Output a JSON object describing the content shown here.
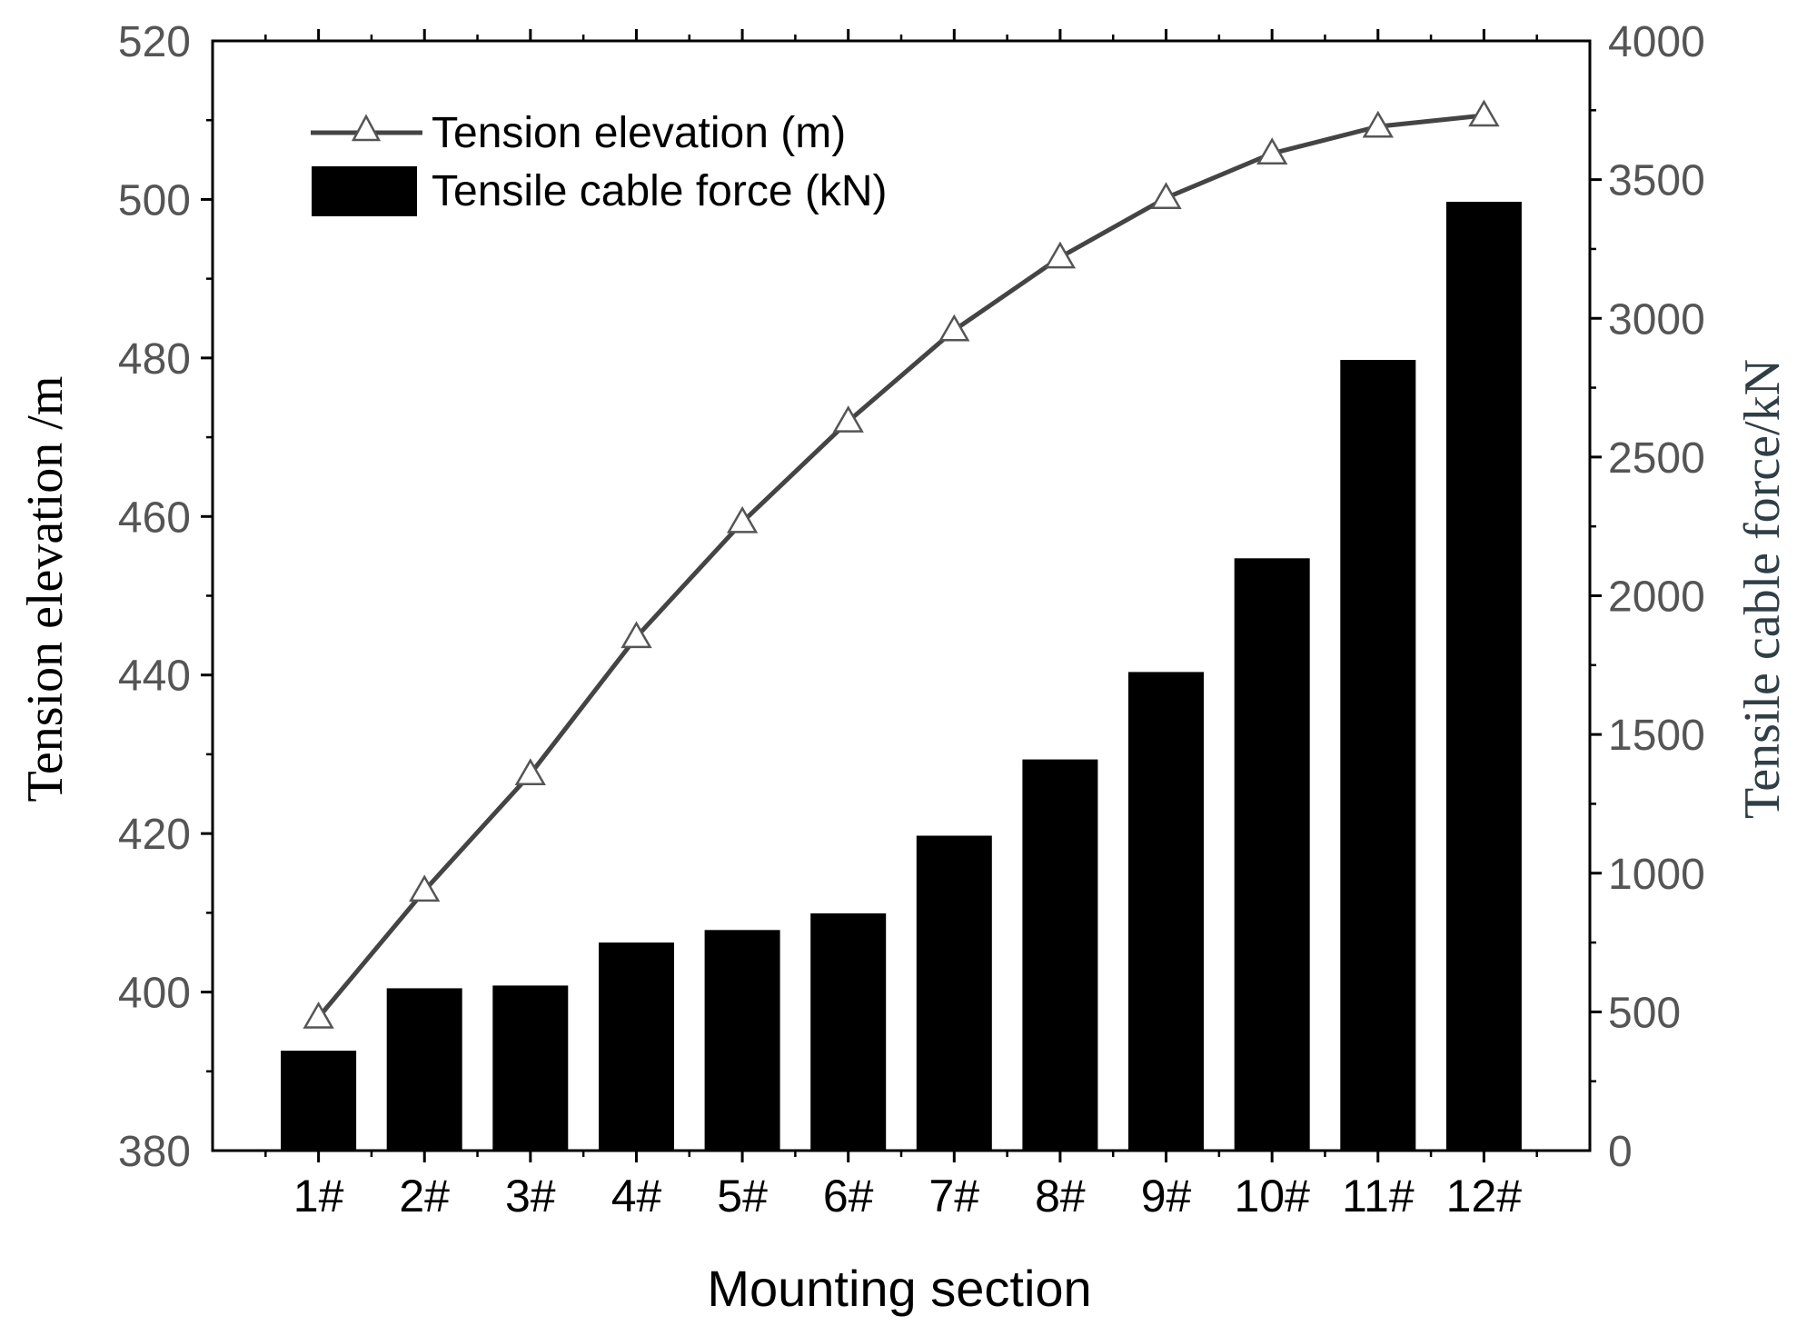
{
  "chart_data": {
    "type": "bar+line",
    "xlabel": "Mounting section",
    "categories": [
      "1#",
      "2#",
      "3#",
      "4#",
      "5#",
      "6#",
      "7#",
      "8#",
      "9#",
      "10#",
      "11#",
      "12#"
    ],
    "left_axis": {
      "label": "Tension elevation /m",
      "ylim": [
        380,
        520
      ],
      "ticks": [
        "380",
        "400",
        "420",
        "440",
        "460",
        "480",
        "500",
        "520"
      ]
    },
    "right_axis": {
      "label": "Tensile cable force/kN",
      "ylim": [
        0,
        4000
      ],
      "ticks": [
        "0",
        "500",
        "1000",
        "1500",
        "2000",
        "2500",
        "3000",
        "3500",
        "4000"
      ]
    },
    "series": [
      {
        "name": "Tension elevation (m)",
        "type": "line",
        "axis": "left",
        "marker": "triangle",
        "values": [
          396.8,
          412.8,
          427.5,
          444.8,
          459.3,
          472.0,
          483.5,
          492.7,
          500.2,
          505.8,
          509.2,
          510.6
        ]
      },
      {
        "name": "Tensile cable force (kN)",
        "type": "bar",
        "axis": "right",
        "values": [
          360,
          585,
          595,
          750,
          795,
          855,
          1135,
          1410,
          1725,
          2135,
          2850,
          3420
        ]
      }
    ],
    "colors": {
      "bar": "#000000",
      "line": "#444444",
      "marker_fill": "#ffffff",
      "marker_stroke": "#555555",
      "axis": "#000000"
    }
  }
}
